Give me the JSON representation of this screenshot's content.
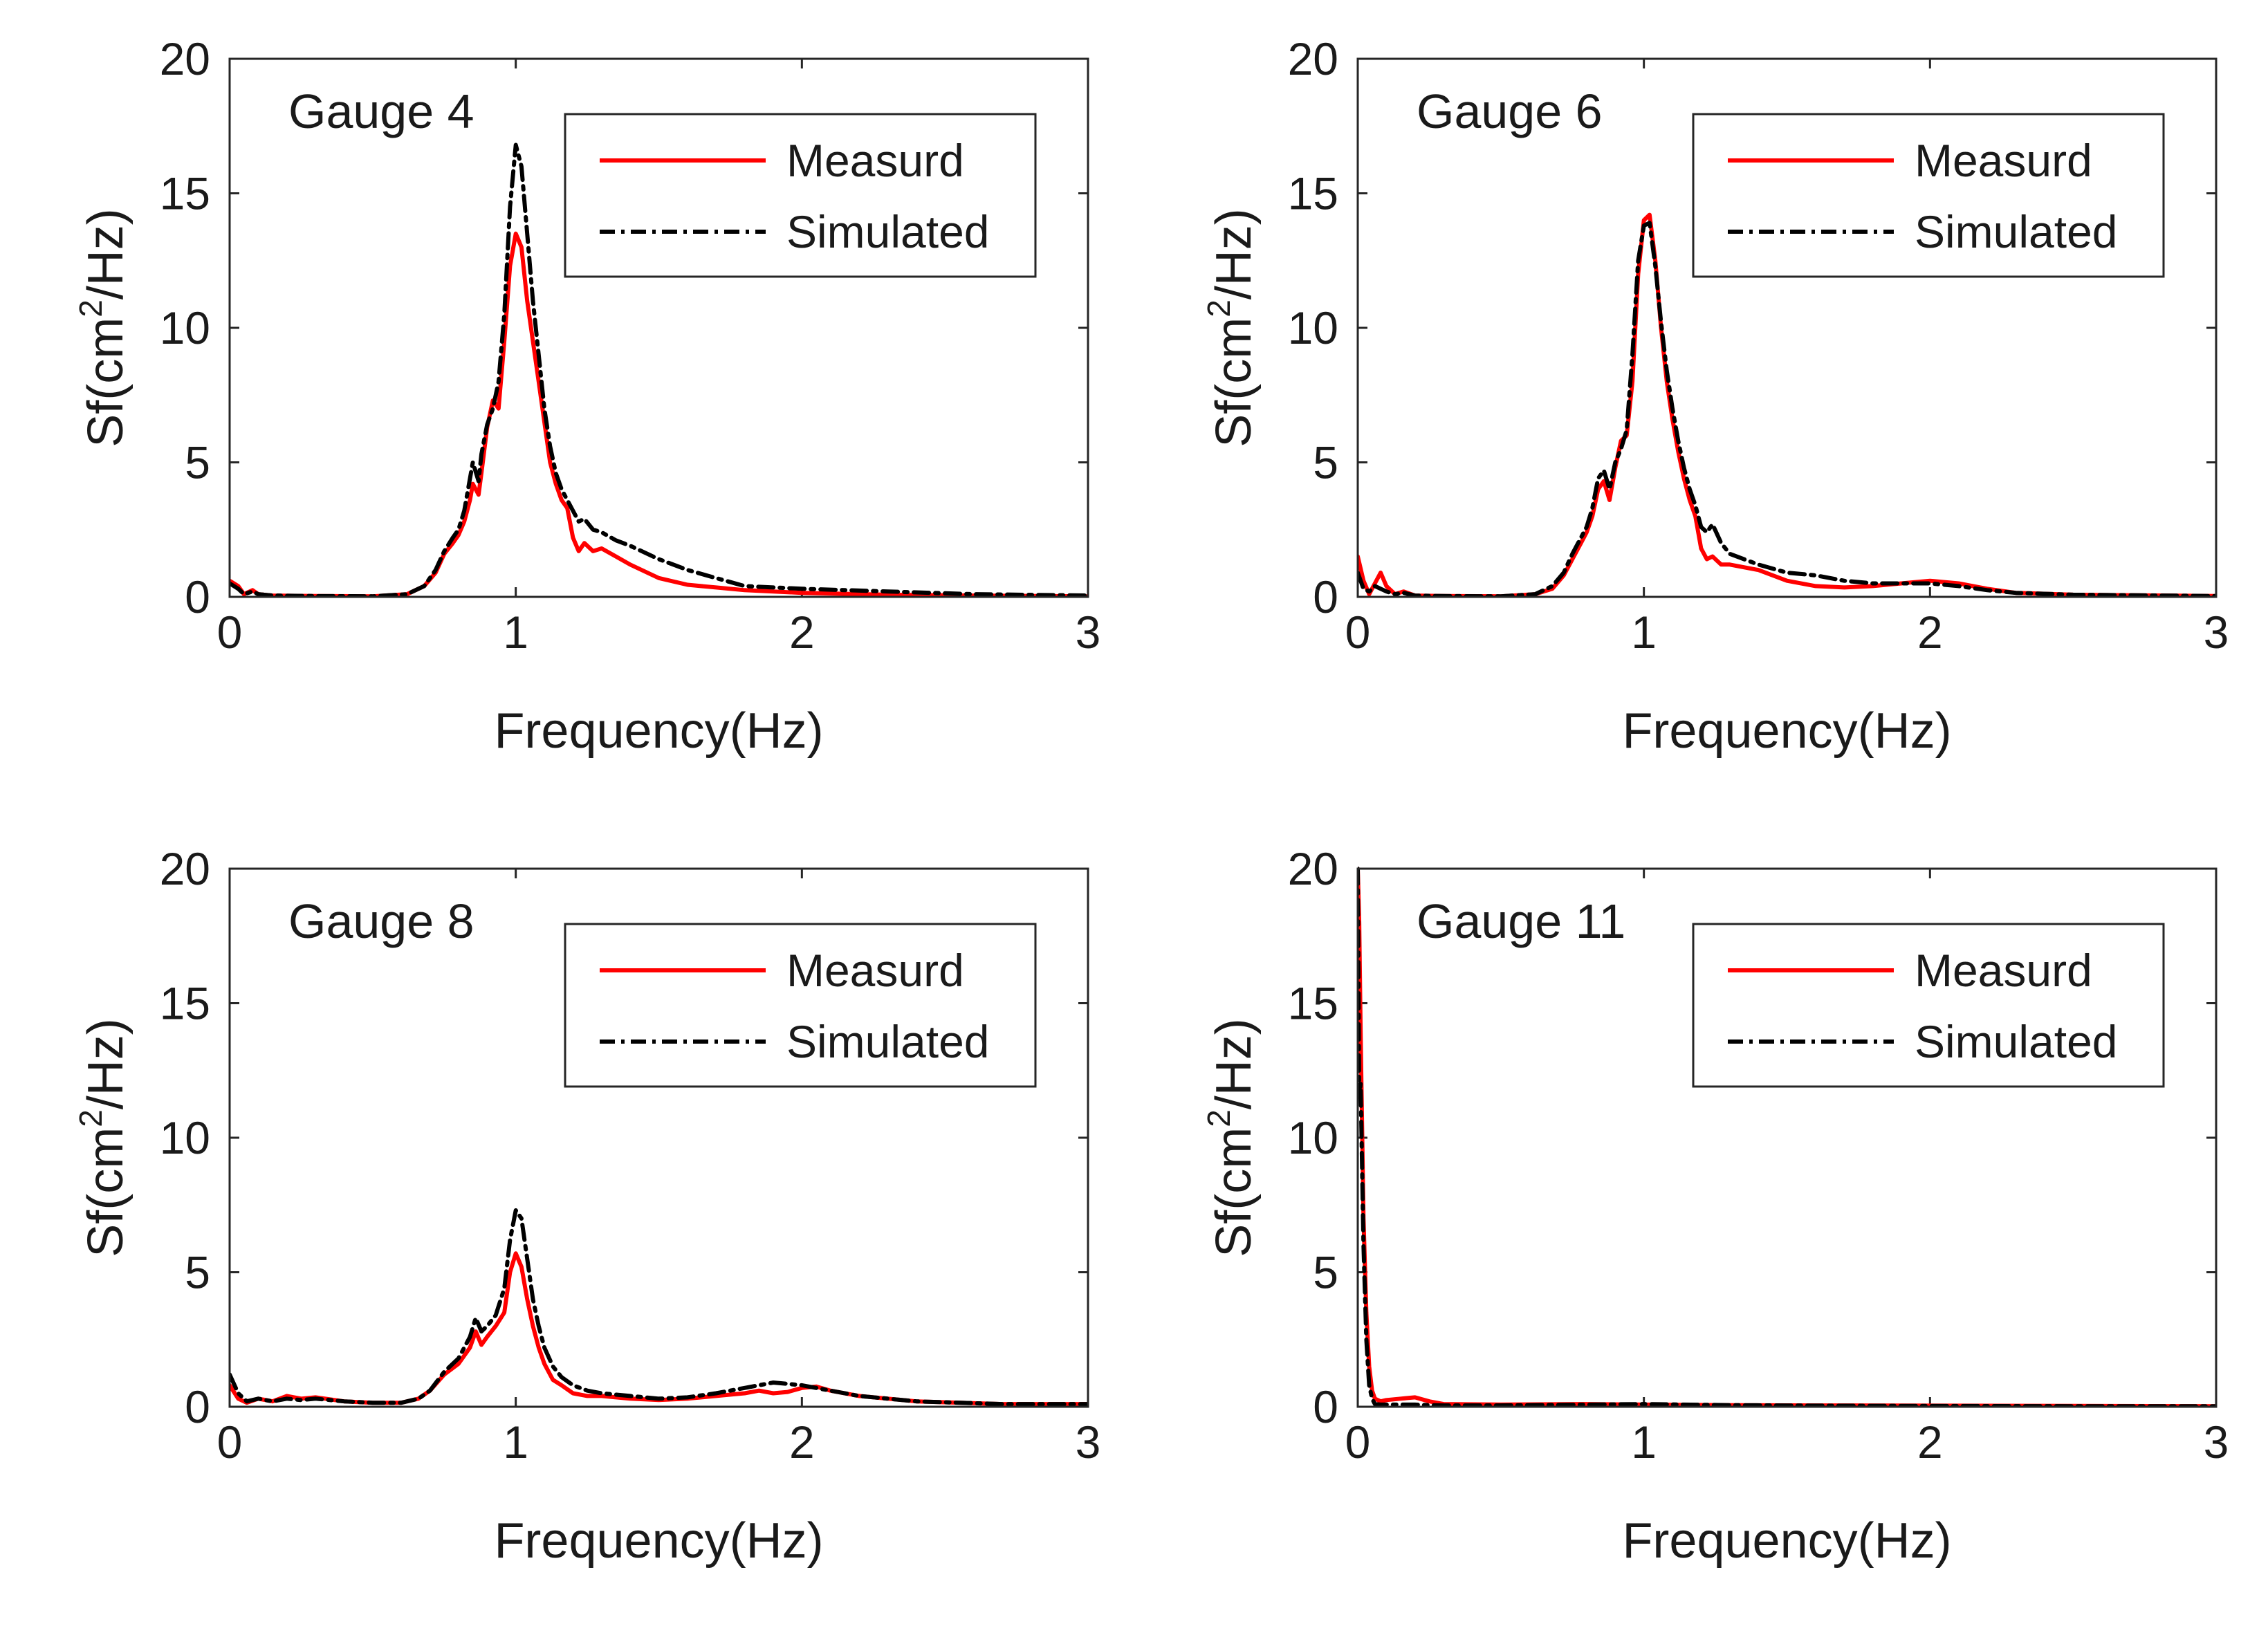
{
  "chart_data": [
    {
      "type": "line",
      "title": "Gauge 4",
      "xlabel": "Frequency(Hz)",
      "ylabel_prefix": "Sf(cm",
      "ylabel_sup": "2",
      "ylabel_suffix": "/Hz)",
      "xlim": [
        0,
        3
      ],
      "ylim": [
        0,
        20
      ],
      "xticks": [
        "0",
        "1",
        "2",
        "3"
      ],
      "yticks": [
        "0",
        "5",
        "10",
        "15",
        "20"
      ],
      "legend": [
        "Measurd",
        "Simulated"
      ],
      "colors": {
        "Measurd": "#ff0000",
        "Simulated": "#000000"
      },
      "series": [
        {
          "name": "Measurd",
          "x": [
            0,
            0.03,
            0.05,
            0.08,
            0.1,
            0.15,
            0.3,
            0.5,
            0.62,
            0.68,
            0.72,
            0.75,
            0.78,
            0.8,
            0.82,
            0.84,
            0.85,
            0.87,
            0.88,
            0.9,
            0.92,
            0.94,
            0.96,
            0.98,
            1.0,
            1.02,
            1.04,
            1.06,
            1.08,
            1.1,
            1.12,
            1.14,
            1.16,
            1.18,
            1.2,
            1.22,
            1.24,
            1.27,
            1.3,
            1.35,
            1.4,
            1.5,
            1.6,
            1.7,
            1.8,
            2.0,
            2.3,
            2.6,
            3.0
          ],
          "y": [
            0.6,
            0.4,
            0.1,
            0.25,
            0.1,
            0.05,
            0.03,
            0.02,
            0.1,
            0.4,
            0.9,
            1.6,
            2.0,
            2.3,
            2.8,
            3.6,
            4.2,
            3.8,
            4.6,
            6.3,
            7.3,
            7.0,
            9.5,
            12.3,
            13.5,
            13.0,
            11.0,
            9.5,
            8.0,
            6.5,
            5.0,
            4.2,
            3.6,
            3.3,
            2.2,
            1.7,
            2.0,
            1.7,
            1.8,
            1.5,
            1.2,
            0.7,
            0.45,
            0.35,
            0.25,
            0.15,
            0.08,
            0.05,
            0.02
          ]
        },
        {
          "name": "Simulated",
          "x": [
            0,
            0.03,
            0.05,
            0.08,
            0.1,
            0.15,
            0.3,
            0.5,
            0.62,
            0.68,
            0.72,
            0.75,
            0.78,
            0.8,
            0.82,
            0.84,
            0.85,
            0.87,
            0.88,
            0.9,
            0.92,
            0.94,
            0.96,
            0.98,
            1.0,
            1.02,
            1.04,
            1.06,
            1.08,
            1.1,
            1.12,
            1.14,
            1.16,
            1.18,
            1.2,
            1.22,
            1.24,
            1.27,
            1.3,
            1.35,
            1.4,
            1.5,
            1.6,
            1.7,
            1.8,
            2.0,
            2.3,
            2.6,
            3.0
          ],
          "y": [
            0.5,
            0.3,
            0.1,
            0.2,
            0.1,
            0.05,
            0.03,
            0.02,
            0.1,
            0.4,
            1.0,
            1.7,
            2.2,
            2.5,
            3.2,
            4.4,
            5.0,
            4.3,
            5.3,
            6.4,
            7.0,
            8.0,
            10.5,
            14.5,
            16.8,
            16.0,
            13.5,
            11.0,
            9.0,
            7.0,
            5.6,
            4.6,
            4.0,
            3.6,
            3.2,
            2.8,
            2.9,
            2.5,
            2.4,
            2.1,
            1.9,
            1.4,
            1.0,
            0.7,
            0.4,
            0.3,
            0.2,
            0.1,
            0.05
          ]
        }
      ]
    },
    {
      "type": "line",
      "title": "Gauge 6",
      "xlabel": "Frequency(Hz)",
      "ylabel_prefix": "Sf(cm",
      "ylabel_sup": "2",
      "ylabel_suffix": "/Hz)",
      "xlim": [
        0,
        3
      ],
      "ylim": [
        0,
        20
      ],
      "xticks": [
        "0",
        "1",
        "2",
        "3"
      ],
      "yticks": [
        "0",
        "5",
        "10",
        "15",
        "20"
      ],
      "legend": [
        "Measurd",
        "Simulated"
      ],
      "colors": {
        "Measurd": "#ff0000",
        "Simulated": "#000000"
      },
      "series": [
        {
          "name": "Measurd",
          "x": [
            0,
            0.02,
            0.04,
            0.06,
            0.08,
            0.1,
            0.13,
            0.16,
            0.2,
            0.3,
            0.5,
            0.62,
            0.68,
            0.72,
            0.75,
            0.78,
            0.8,
            0.82,
            0.84,
            0.86,
            0.88,
            0.9,
            0.92,
            0.94,
            0.96,
            0.98,
            1.0,
            1.02,
            1.04,
            1.06,
            1.08,
            1.1,
            1.12,
            1.14,
            1.16,
            1.18,
            1.2,
            1.22,
            1.24,
            1.27,
            1.3,
            1.4,
            1.5,
            1.6,
            1.7,
            1.8,
            1.9,
            2.0,
            2.05,
            2.1,
            2.2,
            2.3,
            2.5,
            3.0
          ],
          "y": [
            1.5,
            0.6,
            0.1,
            0.5,
            0.9,
            0.4,
            0.1,
            0.2,
            0.05,
            0.03,
            0.02,
            0.1,
            0.3,
            0.8,
            1.4,
            2.0,
            2.4,
            3.0,
            4.0,
            4.3,
            3.6,
            4.8,
            5.8,
            6.0,
            8.0,
            12.0,
            14.0,
            14.2,
            12.5,
            10.0,
            8.0,
            6.6,
            5.4,
            4.4,
            3.6,
            3.0,
            1.8,
            1.4,
            1.5,
            1.2,
            1.2,
            1.0,
            0.6,
            0.4,
            0.35,
            0.4,
            0.5,
            0.6,
            0.55,
            0.5,
            0.3,
            0.15,
            0.08,
            0.03
          ]
        },
        {
          "name": "Simulated",
          "x": [
            0,
            0.02,
            0.04,
            0.06,
            0.08,
            0.1,
            0.13,
            0.16,
            0.2,
            0.3,
            0.5,
            0.62,
            0.68,
            0.72,
            0.75,
            0.78,
            0.8,
            0.82,
            0.84,
            0.86,
            0.88,
            0.9,
            0.92,
            0.94,
            0.96,
            0.98,
            1.0,
            1.02,
            1.04,
            1.06,
            1.08,
            1.1,
            1.12,
            1.14,
            1.16,
            1.18,
            1.2,
            1.22,
            1.24,
            1.27,
            1.3,
            1.4,
            1.5,
            1.6,
            1.7,
            1.8,
            1.9,
            2.0,
            2.05,
            2.1,
            2.2,
            2.3,
            2.5,
            3.0
          ],
          "y": [
            0.9,
            0.3,
            0.2,
            0.4,
            0.3,
            0.2,
            0.1,
            0.15,
            0.05,
            0.03,
            0.02,
            0.1,
            0.4,
            0.9,
            1.6,
            2.2,
            2.6,
            3.3,
            4.4,
            4.7,
            4.0,
            5.0,
            5.5,
            6.2,
            9.0,
            12.5,
            13.8,
            13.9,
            12.3,
            10.2,
            8.4,
            7.0,
            5.8,
            4.8,
            4.0,
            3.4,
            2.6,
            2.4,
            2.7,
            2.0,
            1.6,
            1.2,
            0.9,
            0.8,
            0.6,
            0.5,
            0.5,
            0.5,
            0.45,
            0.4,
            0.25,
            0.15,
            0.08,
            0.03
          ]
        }
      ]
    },
    {
      "type": "line",
      "title": "Gauge 8",
      "xlabel": "Frequency(Hz)",
      "ylabel_prefix": "Sf(cm",
      "ylabel_sup": "2",
      "ylabel_suffix": "/Hz)",
      "xlim": [
        0,
        3
      ],
      "ylim": [
        0,
        20
      ],
      "xticks": [
        "0",
        "1",
        "2",
        "3"
      ],
      "yticks": [
        "0",
        "5",
        "10",
        "15",
        "20"
      ],
      "legend": [
        "Measurd",
        "Simulated"
      ],
      "colors": {
        "Measurd": "#ff0000",
        "Simulated": "#000000"
      },
      "series": [
        {
          "name": "Measurd",
          "x": [
            0,
            0.03,
            0.06,
            0.1,
            0.15,
            0.2,
            0.25,
            0.3,
            0.4,
            0.5,
            0.6,
            0.66,
            0.7,
            0.75,
            0.8,
            0.84,
            0.86,
            0.88,
            0.9,
            0.93,
            0.96,
            0.98,
            1.0,
            1.02,
            1.04,
            1.06,
            1.08,
            1.1,
            1.13,
            1.16,
            1.2,
            1.25,
            1.3,
            1.4,
            1.5,
            1.6,
            1.7,
            1.8,
            1.85,
            1.9,
            1.95,
            2.0,
            2.05,
            2.1,
            2.2,
            2.4,
            2.7,
            3.0
          ],
          "y": [
            0.8,
            0.3,
            0.15,
            0.3,
            0.2,
            0.4,
            0.3,
            0.35,
            0.2,
            0.15,
            0.15,
            0.3,
            0.6,
            1.2,
            1.6,
            2.2,
            2.8,
            2.3,
            2.6,
            3.0,
            3.5,
            5.0,
            5.7,
            5.2,
            4.0,
            3.0,
            2.2,
            1.6,
            1.0,
            0.8,
            0.5,
            0.4,
            0.4,
            0.3,
            0.25,
            0.3,
            0.4,
            0.5,
            0.6,
            0.5,
            0.55,
            0.7,
            0.75,
            0.6,
            0.4,
            0.2,
            0.1,
            0.1
          ]
        },
        {
          "name": "Simulated",
          "x": [
            0,
            0.03,
            0.06,
            0.1,
            0.15,
            0.2,
            0.25,
            0.3,
            0.4,
            0.5,
            0.6,
            0.66,
            0.7,
            0.75,
            0.8,
            0.84,
            0.86,
            0.88,
            0.9,
            0.93,
            0.96,
            0.98,
            1.0,
            1.02,
            1.04,
            1.06,
            1.08,
            1.1,
            1.13,
            1.16,
            1.2,
            1.25,
            1.3,
            1.4,
            1.5,
            1.6,
            1.7,
            1.8,
            1.85,
            1.9,
            1.95,
            2.0,
            2.05,
            2.1,
            2.2,
            2.4,
            2.7,
            3.0
          ],
          "y": [
            1.2,
            0.5,
            0.2,
            0.3,
            0.2,
            0.3,
            0.25,
            0.3,
            0.2,
            0.15,
            0.15,
            0.3,
            0.6,
            1.3,
            1.8,
            2.6,
            3.3,
            2.8,
            3.0,
            3.4,
            4.4,
            6.2,
            7.3,
            7.0,
            5.5,
            4.0,
            3.0,
            2.2,
            1.5,
            1.1,
            0.8,
            0.6,
            0.5,
            0.4,
            0.3,
            0.35,
            0.5,
            0.7,
            0.8,
            0.9,
            0.85,
            0.8,
            0.7,
            0.6,
            0.4,
            0.2,
            0.1,
            0.1
          ]
        }
      ]
    },
    {
      "type": "line",
      "title": "Gauge 11",
      "xlabel": "Frequency(Hz)",
      "ylabel_prefix": "Sf(cm",
      "ylabel_sup": "2",
      "ylabel_suffix": "/Hz)",
      "xlim": [
        0,
        3
      ],
      "ylim": [
        0,
        20
      ],
      "xticks": [
        "0",
        "1",
        "2",
        "3"
      ],
      "yticks": [
        "0",
        "5",
        "10",
        "15",
        "20"
      ],
      "legend": [
        "Measurd",
        "Simulated"
      ],
      "colors": {
        "Measurd": "#ff0000",
        "Simulated": "#000000"
      },
      "series": [
        {
          "name": "Measurd",
          "x": [
            0,
            0.005,
            0.01,
            0.02,
            0.03,
            0.04,
            0.05,
            0.06,
            0.08,
            0.1,
            0.15,
            0.2,
            0.25,
            0.3,
            0.5,
            0.8,
            1.0,
            1.3,
            1.6,
            2.0,
            2.5,
            3.0
          ],
          "y": [
            20,
            18,
            14,
            7,
            3.5,
            1.5,
            0.6,
            0.3,
            0.2,
            0.25,
            0.3,
            0.35,
            0.2,
            0.1,
            0.08,
            0.1,
            0.08,
            0.06,
            0.05,
            0.04,
            0.03,
            0.02
          ]
        },
        {
          "name": "Simulated",
          "x": [
            0,
            0.005,
            0.01,
            0.02,
            0.03,
            0.04,
            0.05,
            0.06,
            0.08,
            0.1,
            0.15,
            0.2,
            0.25,
            0.3,
            0.5,
            0.8,
            1.0,
            1.3,
            1.6,
            2.0,
            2.5,
            3.0
          ],
          "y": [
            20,
            11.5,
            12,
            6,
            2.5,
            0.8,
            0.3,
            0.1,
            0.08,
            0.08,
            0.08,
            0.08,
            0.06,
            0.05,
            0.05,
            0.08,
            0.1,
            0.06,
            0.04,
            0.03,
            0.02,
            0.02
          ]
        }
      ]
    }
  ]
}
